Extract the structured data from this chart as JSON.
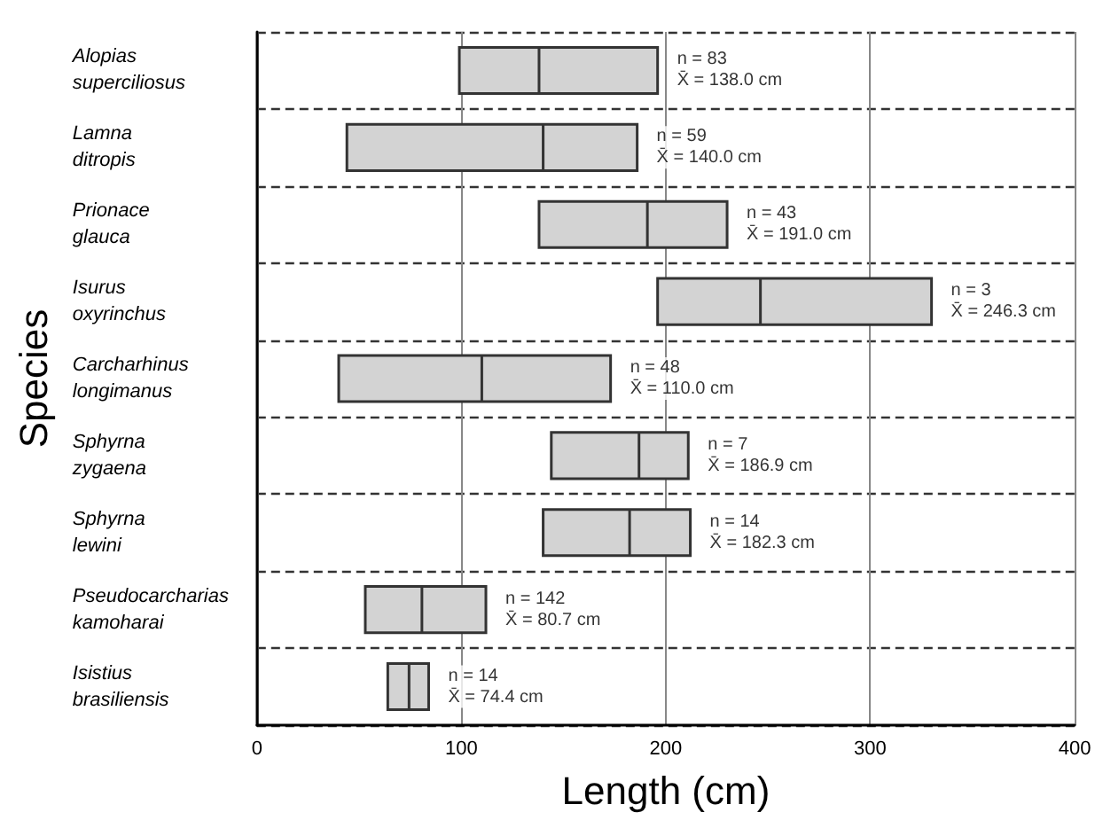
{
  "chart_data": {
    "type": "box",
    "orientation": "horizontal",
    "xlabel": "Length (cm)",
    "ylabel": "Species",
    "categories": [
      "Alopias\nsuperciliosus",
      "Lamna\nditropis",
      "Prionace\nglauca",
      "Isurus\noxyrinchus",
      "Carcharhinus\nlongimanus",
      "Sphyrna\nzygaena",
      "Sphyrna\nlewini",
      "Pseudocarcharias\nkamoharai",
      "Isistius\nbrasiliensis"
    ],
    "series": [
      {
        "color": "#d3d3d3",
        "boxes": [
          {
            "low": 99,
            "q1": 99,
            "median": 138.0,
            "q3": 196,
            "high": 196
          },
          {
            "low": 44,
            "q1": 44,
            "median": 140.0,
            "q3": 186,
            "high": 186
          },
          {
            "low": 138,
            "q1": 138,
            "median": 191.0,
            "q3": 230,
            "high": 230
          },
          {
            "low": 196,
            "q1": 196,
            "median": 246.3,
            "q3": 330,
            "high": 330
          },
          {
            "low": 40,
            "q1": 40,
            "median": 110.0,
            "q3": 173,
            "high": 173
          },
          {
            "low": 144,
            "q1": 144,
            "median": 186.9,
            "q3": 211,
            "high": 211
          },
          {
            "low": 140,
            "q1": 140,
            "median": 182.3,
            "q3": 212,
            "high": 212
          },
          {
            "low": 53,
            "q1": 53,
            "median": 80.7,
            "q3": 112,
            "high": 112
          },
          {
            "low": 64,
            "q1": 64,
            "median": 74.4,
            "q3": 84,
            "high": 84
          }
        ]
      }
    ],
    "xlim": [
      0,
      400
    ],
    "xticks": [
      0,
      100,
      200,
      300,
      400
    ],
    "grid": true,
    "annotations": [
      {
        "text": "n = 83\nX̄ = 138.0 cm",
        "x": 196,
        "y": "Alopias\nsuperciliosus"
      },
      {
        "text": "n = 59\nX̄ = 140.0 cm",
        "x": 186,
        "y": "Lamna\nditropis"
      },
      {
        "text": "n = 43\nX̄ = 191.0 cm",
        "x": 230,
        "y": "Prionace\nglauca"
      },
      {
        "text": "n = 3\nX̄ = 246.3 cm",
        "x": 330,
        "y": "Isurus\noxyrinchus"
      },
      {
        "text": "n = 48\nX̄ = 110.0 cm",
        "x": 173,
        "y": "Carcharhinus\nlongimanus"
      },
      {
        "text": "n = 7\nX̄ = 186.9 cm",
        "x": 211,
        "y": "Sphyrna\nzygaena"
      },
      {
        "text": "n = 14\nX̄ = 182.3 cm",
        "x": 212,
        "y": "Sphyrna\nlewini"
      },
      {
        "text": "n = 142\nX̄ = 80.7 cm",
        "x": 112,
        "y": "Pseudocarcharias\nkamoharai"
      },
      {
        "text": "n = 14\nX̄ = 74.4 cm",
        "x": 84,
        "y": "Isistius\nbrasiliensis"
      }
    ]
  }
}
